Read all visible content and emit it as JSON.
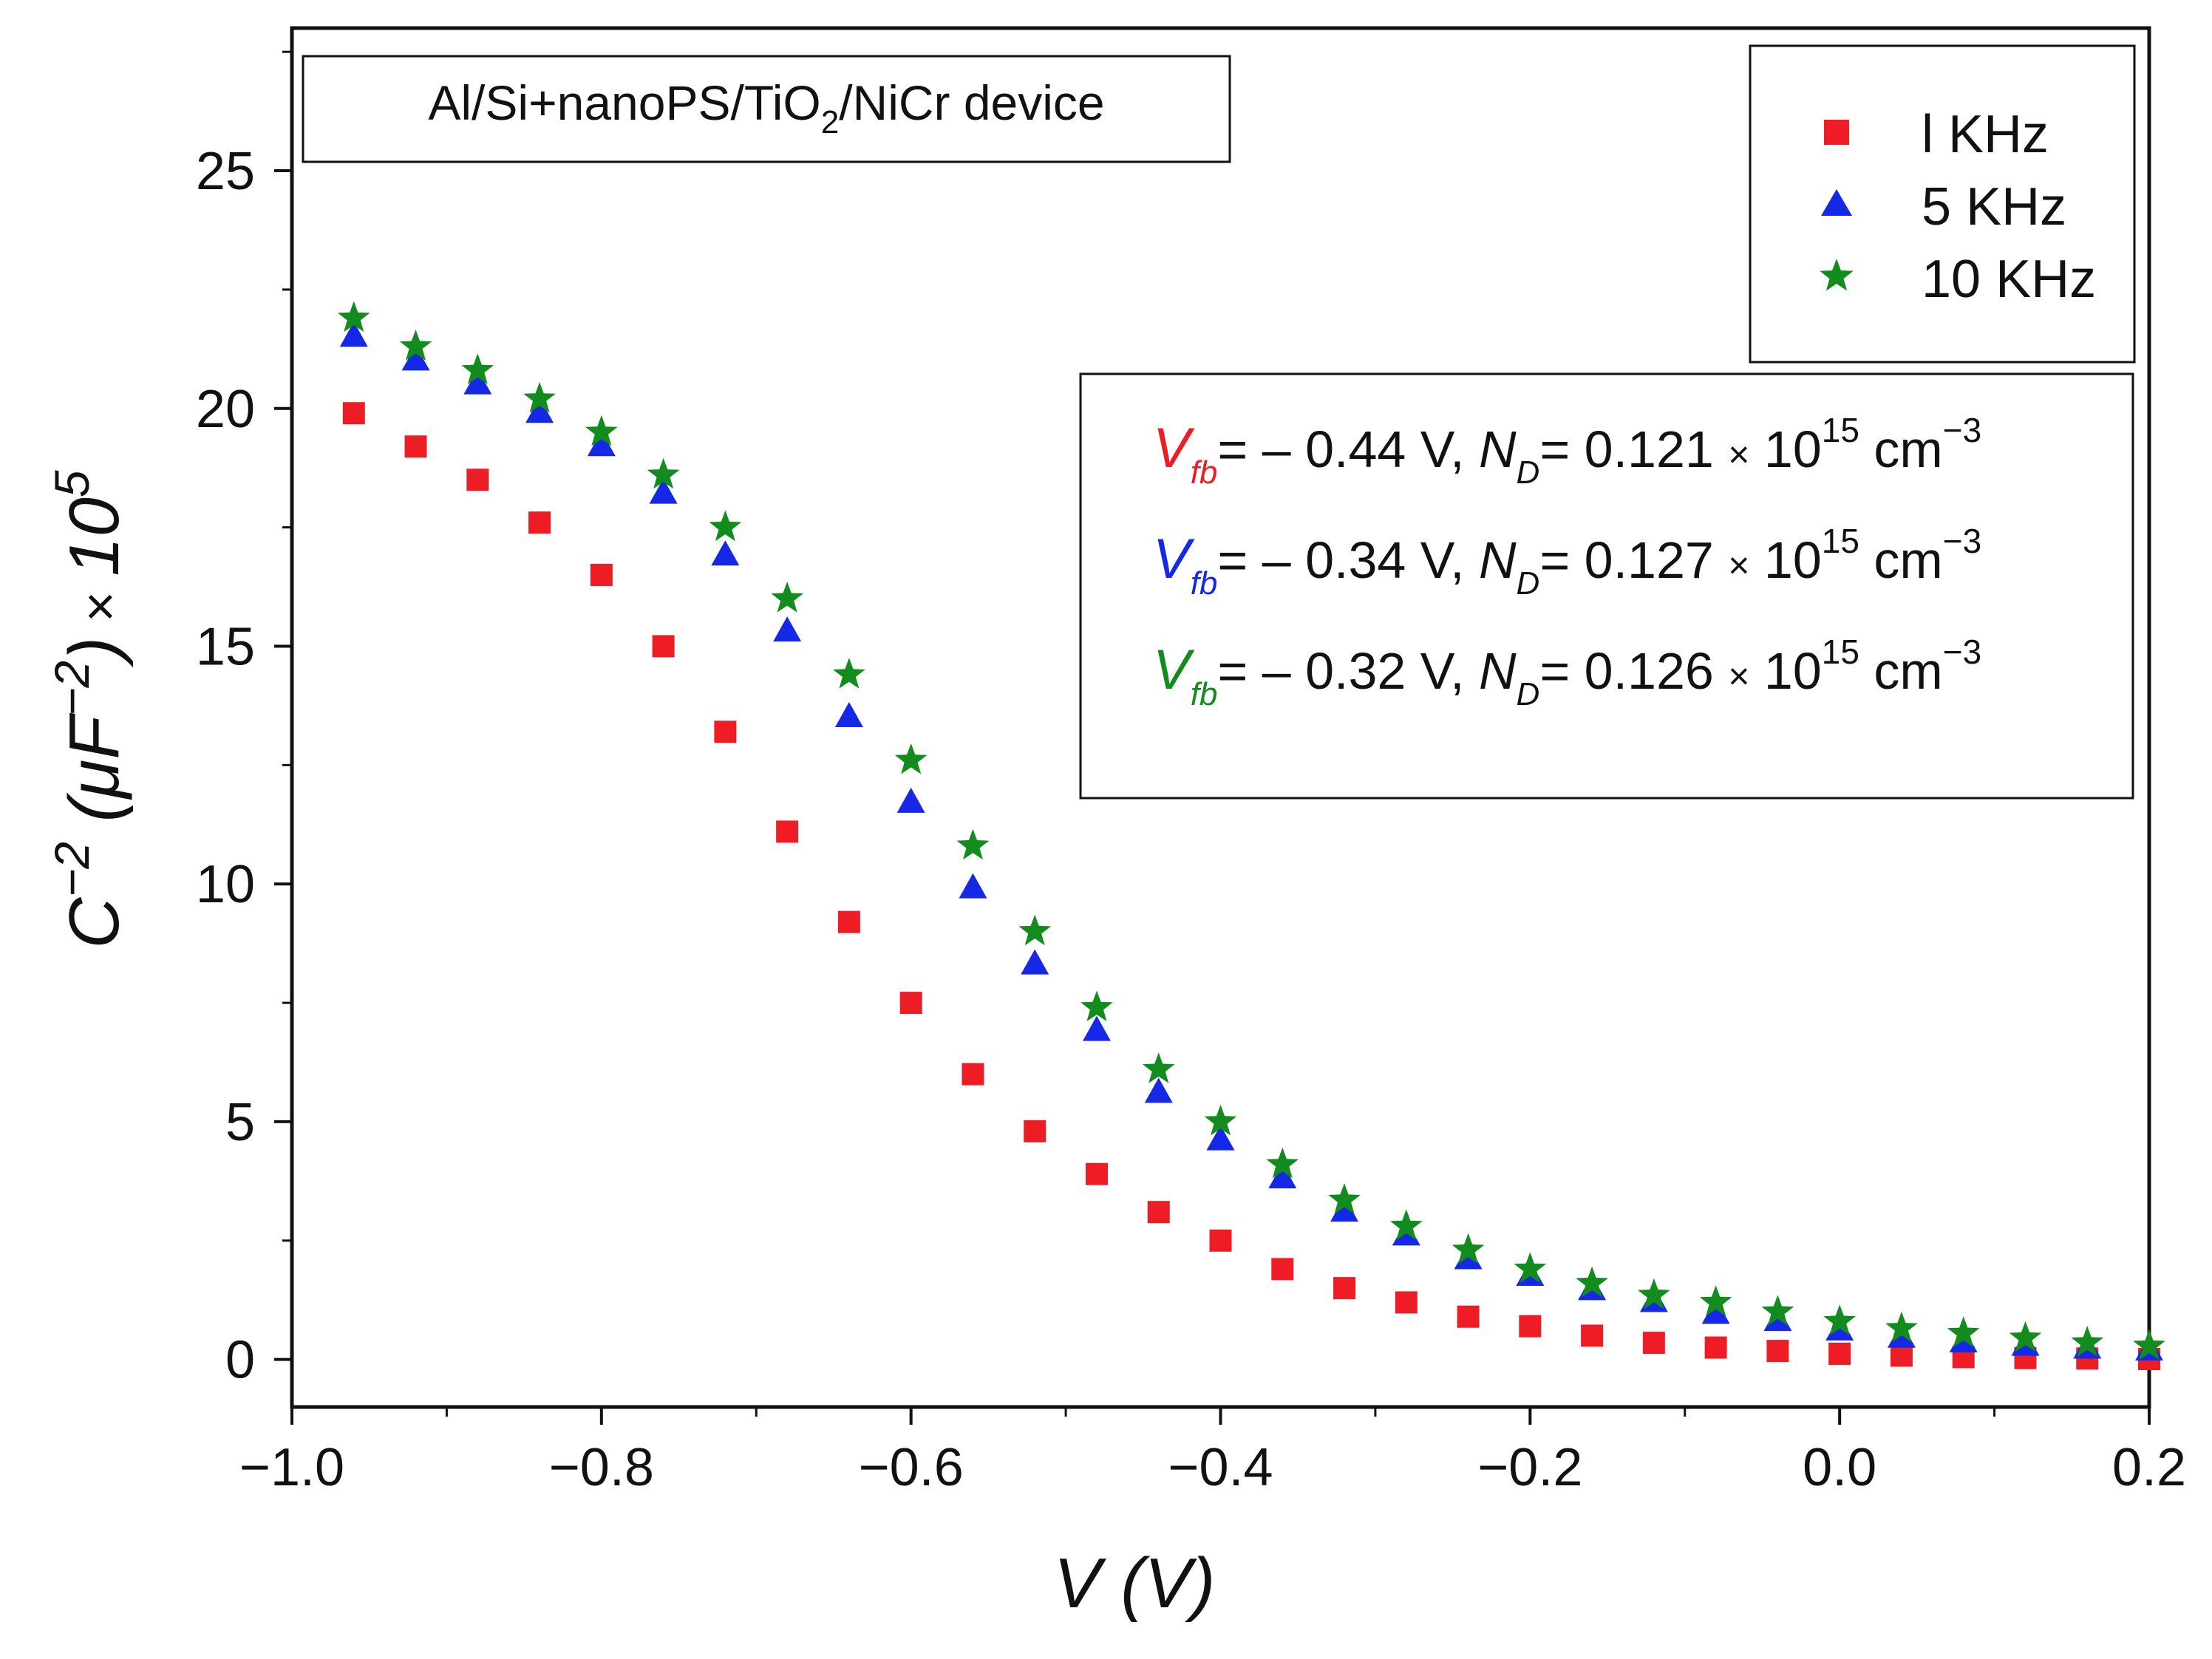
{
  "chart_data": {
    "type": "scatter",
    "title_box": {
      "main": "Al/Si+nanoPS/TiO",
      "sub": "2",
      "rest": "/NiCr device"
    },
    "xlabel": "V (V)",
    "ylabel": {
      "c": "C",
      "exp1": "−2",
      "open": " (",
      "mu": "μ",
      "f": "F",
      "exp2": "−2",
      "close": ")",
      "times": " × ",
      "ten": "10",
      "exp3": "5"
    },
    "xlim": [
      -1.0,
      0.2
    ],
    "ylim": [
      -1.0,
      28.0
    ],
    "xticks": [
      -1.0,
      -0.8,
      -0.6,
      -0.4,
      -0.2,
      0.0,
      0.2
    ],
    "xtick_labels": [
      "−1.0",
      "−0.8",
      "−0.6",
      "−0.4",
      "−0.2",
      "0.0",
      "0.2"
    ],
    "yticks": [
      0,
      5,
      10,
      15,
      20,
      25
    ],
    "ytick_labels": [
      "0",
      "5",
      "10",
      "15",
      "20",
      "25"
    ],
    "x": [
      -0.96,
      -0.92,
      -0.88,
      -0.84,
      -0.8,
      -0.76,
      -0.72,
      -0.68,
      -0.64,
      -0.6,
      -0.56,
      -0.52,
      -0.48,
      -0.44,
      -0.4,
      -0.36,
      -0.32,
      -0.28,
      -0.24,
      -0.2,
      -0.16,
      -0.12,
      -0.08,
      -0.04,
      0.0,
      0.04,
      0.08,
      0.12,
      0.16,
      0.2
    ],
    "series": [
      {
        "name": "l KHz",
        "marker": "square",
        "color": "#ee1c24",
        "values": [
          19.9,
          19.2,
          18.5,
          17.6,
          16.5,
          15.0,
          13.2,
          11.1,
          9.2,
          7.5,
          6.0,
          4.8,
          3.9,
          3.1,
          2.5,
          1.9,
          1.5,
          1.2,
          0.9,
          0.7,
          0.5,
          0.35,
          0.25,
          0.18,
          0.12,
          0.08,
          0.05,
          0.03,
          0.02,
          0.01
        ]
      },
      {
        "name": "5 KHz",
        "marker": "triangle",
        "color": "#1428e6",
        "values": [
          21.5,
          21.0,
          20.5,
          19.9,
          19.2,
          18.2,
          16.9,
          15.3,
          13.5,
          11.7,
          9.9,
          8.3,
          6.9,
          5.6,
          4.6,
          3.8,
          3.1,
          2.6,
          2.1,
          1.75,
          1.45,
          1.2,
          0.95,
          0.8,
          0.6,
          0.45,
          0.35,
          0.28,
          0.22,
          0.18
        ]
      },
      {
        "name": "10 KHz",
        "marker": "star",
        "color": "#128c1c",
        "values": [
          21.9,
          21.3,
          20.8,
          20.2,
          19.5,
          18.6,
          17.5,
          16.0,
          14.4,
          12.6,
          10.8,
          9.0,
          7.4,
          6.1,
          5.0,
          4.1,
          3.35,
          2.8,
          2.3,
          1.9,
          1.6,
          1.35,
          1.2,
          1.0,
          0.8,
          0.65,
          0.55,
          0.45,
          0.35,
          0.28
        ]
      }
    ],
    "annotations": [
      {
        "color": "#ee1c24",
        "v": "V",
        "fb": "fb",
        "eq1": "= – 0.44 V, ",
        "n": "N",
        "d": "D",
        "eq2": "= 0.121 ",
        "times": "×",
        "ten": " 10",
        "exp": "15",
        "unit": " cm",
        "unitexp": "−3"
      },
      {
        "color": "#1428e6",
        "v": "V",
        "fb": "fb",
        "eq1": "= – 0.34 V, ",
        "n": "N",
        "d": "D",
        "eq2": "= 0.127 ",
        "times": "×",
        "ten": " 10",
        "exp": "15",
        "unit": " cm",
        "unitexp": "−3"
      },
      {
        "color": "#128c1c",
        "v": "V",
        "fb": "fb",
        "eq1": "= – 0.32 V, ",
        "n": "N",
        "d": "D",
        "eq2": "= 0.126 ",
        "times": "×",
        "ten": " 10",
        "exp": "15",
        "unit": " cm",
        "unitexp": "−3"
      }
    ]
  }
}
